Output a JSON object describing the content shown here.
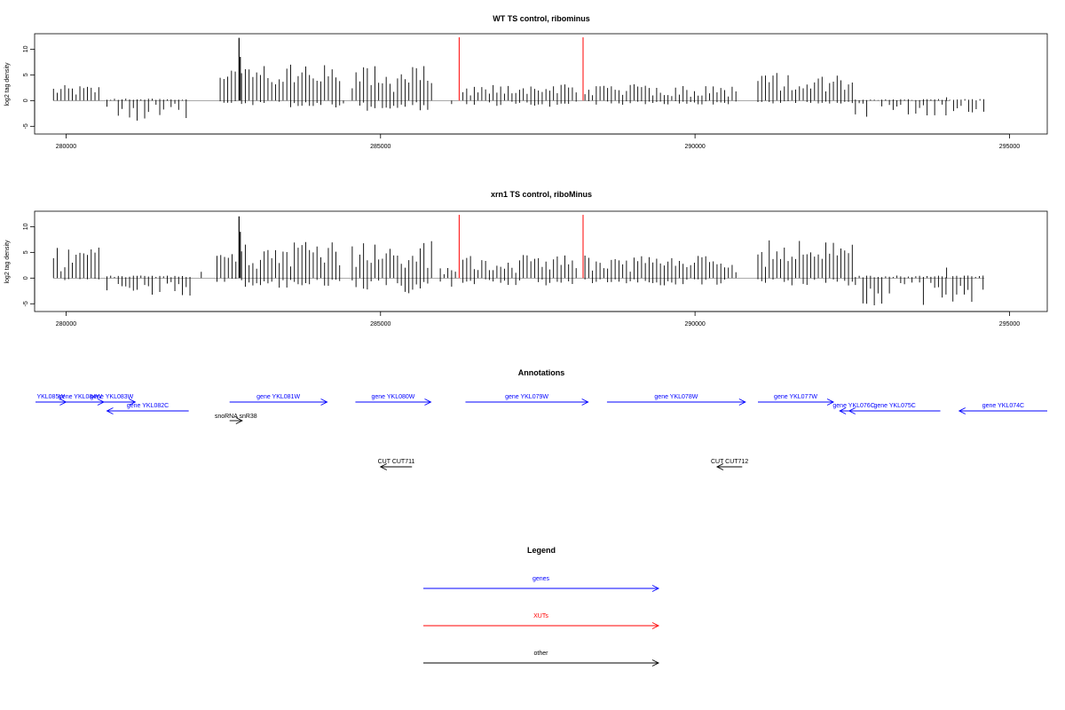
{
  "panels": [
    {
      "title": "WT TS control, ribominus",
      "ylabel": "log2 tag density",
      "xlim": [
        279500,
        295600
      ],
      "ylim": [
        -6.5,
        13
      ],
      "xticks": [
        280000,
        285000,
        290000,
        295000
      ],
      "xtick_labels": [
        "280000",
        "285000",
        "290000",
        "295000"
      ],
      "yticks": [
        -5,
        0,
        5,
        10
      ],
      "ytick_labels": [
        "-5",
        "0",
        "5",
        "10"
      ],
      "red_markers": [
        286250,
        288220
      ],
      "red_marker_height": 12.3,
      "spikes": [
        {
          "at": 282750,
          "value": 12.2
        },
        {
          "at": 282770,
          "value": 8.5
        }
      ],
      "segments": [
        {
          "start": 279800,
          "end": 280550,
          "pos": 3.0,
          "neg": 0
        },
        {
          "start": 280650,
          "end": 281950,
          "pos": 0.4,
          "neg": -4.0
        },
        {
          "start": 282450,
          "end": 282740,
          "pos": 6.0,
          "neg": -0.8
        },
        {
          "start": 282790,
          "end": 284350,
          "pos": 7.0,
          "neg": -1.5
        },
        {
          "start": 284350,
          "end": 284420,
          "pos": 0,
          "neg": -2.5
        },
        {
          "start": 284550,
          "end": 285850,
          "pos": 6.8,
          "neg": -2.0
        },
        {
          "start": 285950,
          "end": 286200,
          "pos": 0,
          "neg": -1.0
        },
        {
          "start": 286310,
          "end": 288120,
          "pos": 3.2,
          "neg": -1.2
        },
        {
          "start": 288250,
          "end": 290700,
          "pos": 3.2,
          "neg": -0.8
        },
        {
          "start": 291000,
          "end": 292500,
          "pos": 5.5,
          "neg": -0.6
        },
        {
          "start": 292550,
          "end": 294600,
          "pos": 0.3,
          "neg": -3.2
        },
        {
          "start": 294000,
          "end": 294050,
          "pos": 1.0,
          "neg": 0
        }
      ]
    },
    {
      "title": "xrn1 TS control, riboMinus",
      "ylabel": "log2 tag density",
      "xlim": [
        279500,
        295600
      ],
      "ylim": [
        -6.5,
        13
      ],
      "xticks": [
        280000,
        285000,
        290000,
        295000
      ],
      "xtick_labels": [
        "280000",
        "285000",
        "290000",
        "295000"
      ],
      "yticks": [
        -5,
        0,
        5,
        10
      ],
      "ytick_labels": [
        "-5",
        "0",
        "5",
        "10"
      ],
      "red_markers": [
        286250,
        288220
      ],
      "red_marker_height": 12.3,
      "spikes": [
        {
          "at": 282750,
          "value": 12.0
        },
        {
          "at": 282770,
          "value": 9.0
        }
      ],
      "segments": [
        {
          "start": 279800,
          "end": 280550,
          "pos": 6.0,
          "neg": -0.5
        },
        {
          "start": 280650,
          "end": 282000,
          "pos": 0.5,
          "neg": -3.5
        },
        {
          "start": 282150,
          "end": 282200,
          "pos": 1.5,
          "neg": 0
        },
        {
          "start": 282400,
          "end": 282740,
          "pos": 5.0,
          "neg": -0.8
        },
        {
          "start": 282790,
          "end": 284350,
          "pos": 7.5,
          "neg": -2.0
        },
        {
          "start": 284550,
          "end": 285850,
          "pos": 7.5,
          "neg": -3.0
        },
        {
          "start": 285950,
          "end": 286200,
          "pos": 2.0,
          "neg": -2.5
        },
        {
          "start": 286310,
          "end": 288120,
          "pos": 4.5,
          "neg": -1.5
        },
        {
          "start": 288250,
          "end": 290700,
          "pos": 4.5,
          "neg": -1.5
        },
        {
          "start": 291000,
          "end": 292500,
          "pos": 7.5,
          "neg": -1.5
        },
        {
          "start": 292550,
          "end": 294000,
          "pos": 0.5,
          "neg": -5.5
        },
        {
          "start": 294000,
          "end": 294050,
          "pos": 3.0,
          "neg": 0
        },
        {
          "start": 294100,
          "end": 294600,
          "pos": 0.5,
          "neg": -5.0
        }
      ]
    }
  ],
  "annotations": {
    "title": "Annotations",
    "features": [
      {
        "label": "YKL085W",
        "start": 279350,
        "end": 280000,
        "row": 0,
        "dir": 1,
        "color": "#0000ff"
      },
      {
        "label": "gene YKL084W",
        "start": 279850,
        "end": 280600,
        "row": 0,
        "dir": 1,
        "color": "#0000ff"
      },
      {
        "label": "gene YKL083W",
        "start": 280350,
        "end": 281100,
        "row": 0,
        "dir": 1,
        "color": "#0000ff"
      },
      {
        "label": "gene YKL082C",
        "start": 280650,
        "end": 281950,
        "row": 1,
        "dir": -1,
        "color": "#0000ff"
      },
      {
        "label": "gene YKL081W",
        "start": 282600,
        "end": 284150,
        "row": 0,
        "dir": 1,
        "color": "#0000ff"
      },
      {
        "label": "snoRNA snR38",
        "start": 282600,
        "end": 282800,
        "row": 2,
        "dir": 1,
        "color": "#000000"
      },
      {
        "label": "gene YKL080W",
        "start": 284600,
        "end": 285800,
        "row": 0,
        "dir": 1,
        "color": "#0000ff"
      },
      {
        "label": "gene YKL079W",
        "start": 286350,
        "end": 288300,
        "row": 0,
        "dir": 1,
        "color": "#0000ff"
      },
      {
        "label": "gene YKL078W",
        "start": 288600,
        "end": 290800,
        "row": 0,
        "dir": 1,
        "color": "#0000ff"
      },
      {
        "label": "gene YKL077W",
        "start": 291000,
        "end": 292200,
        "row": 0,
        "dir": 1,
        "color": "#0000ff"
      },
      {
        "label": "gene YKL076C",
        "start": 292300,
        "end": 292750,
        "row": 1,
        "dir": -1,
        "color": "#0000ff"
      },
      {
        "label": "gene YKL075C",
        "start": 292450,
        "end": 293900,
        "row": 1,
        "dir": -1,
        "color": "#0000ff"
      },
      {
        "label": "gene YKL074C",
        "start": 294200,
        "end": 296300,
        "row": 1,
        "dir": -1,
        "color": "#0000ff"
      },
      {
        "label": "CUT CUT711",
        "start": 285000,
        "end": 285500,
        "row": 3,
        "dir": -1,
        "color": "#000000"
      },
      {
        "label": "CUT CUT712",
        "start": 290350,
        "end": 290750,
        "row": 3,
        "dir": -1,
        "color": "#000000"
      }
    ]
  },
  "legend": {
    "title": "Legend",
    "items": [
      {
        "label": "genes",
        "color": "#0000ff"
      },
      {
        "label": "XUTs",
        "color": "#ff0000"
      },
      {
        "label": "other",
        "color": "#000000"
      }
    ]
  },
  "chart_data": [
    {
      "type": "bar",
      "title": "WT TS control, ribominus",
      "ylabel": "log2 tag density",
      "xlim": [
        279500,
        295600
      ],
      "ylim": [
        -6.5,
        13
      ],
      "grid": false,
      "series": [
        {
          "name": "",
          "x": [
            279800,
            280550,
            281300,
            282750,
            283500,
            284400,
            285200,
            287200,
            289500,
            291800,
            293600
          ],
          "values": [
            3.0,
            2.5,
            -4.0,
            12.2,
            7.0,
            -2.5,
            6.8,
            3.2,
            3.2,
            5.5,
            -3.2
          ]
        }
      ]
    },
    {
      "type": "bar",
      "title": "xrn1 TS control, riboMinus",
      "ylabel": "log2 tag density",
      "xlim": [
        279500,
        295600
      ],
      "ylim": [
        -6.5,
        13
      ],
      "grid": false,
      "series": [
        {
          "name": "",
          "x": [
            279800,
            280550,
            281300,
            282750,
            283500,
            284400,
            285200,
            287200,
            289500,
            291800,
            293600
          ],
          "values": [
            6.0,
            2.0,
            -3.5,
            12.0,
            7.5,
            -2.0,
            7.5,
            4.5,
            4.5,
            7.5,
            -5.5
          ]
        }
      ]
    }
  ]
}
